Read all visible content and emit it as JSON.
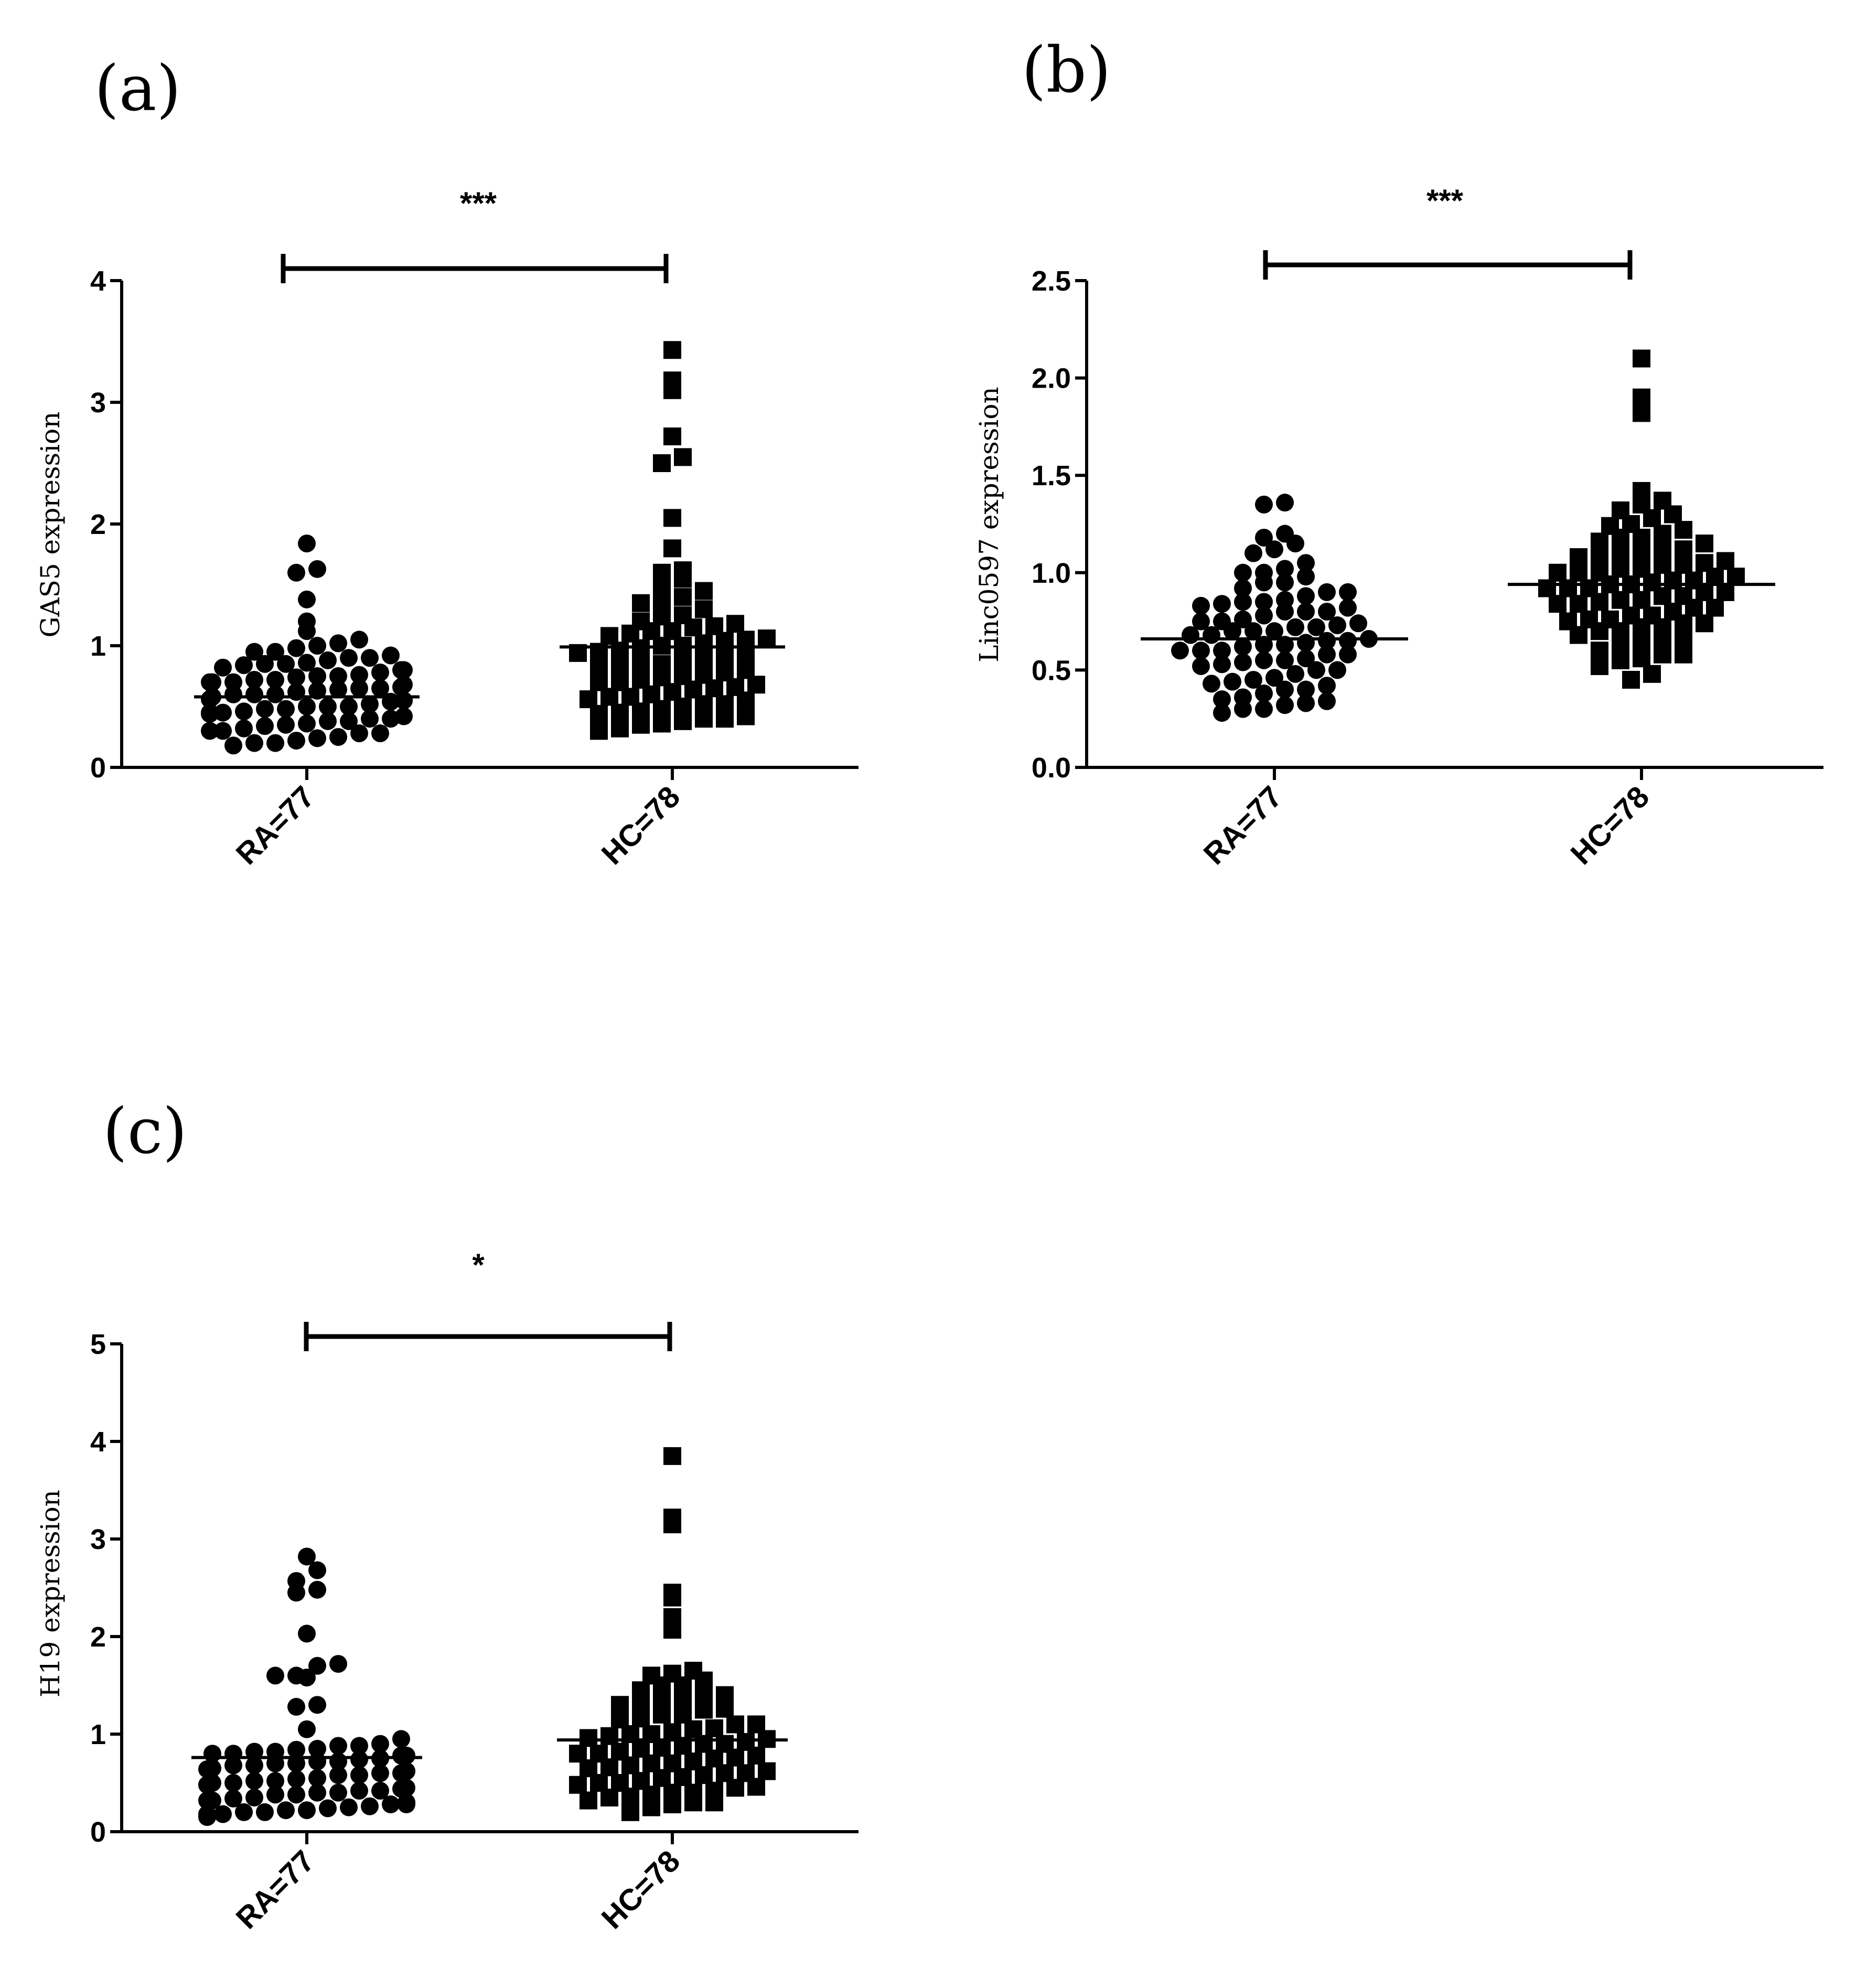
{
  "chart_data": [
    {
      "type": "scatter",
      "panel": "(a)",
      "ylabel": "GAS5 expression",
      "ylim": [
        0,
        4
      ],
      "yticks": [
        "0",
        "1",
        "2",
        "3",
        "4"
      ],
      "categories": [
        "RA=77",
        "HC=78"
      ],
      "significance": "***",
      "series": [
        {
          "name": "RA=77",
          "marker": "circle",
          "mean": 0.58,
          "values": [
            0.18,
            0.2,
            0.22,
            0.25,
            0.28,
            0.3,
            0.32,
            0.34,
            0.36,
            0.38,
            0.4,
            0.42,
            0.44,
            0.45,
            0.46,
            0.48,
            0.5,
            0.5,
            0.52,
            0.54,
            0.55,
            0.56,
            0.58,
            0.6,
            0.6,
            0.62,
            0.63,
            0.64,
            0.65,
            0.66,
            0.68,
            0.7,
            0.7,
            0.72,
            0.72,
            0.74,
            0.75,
            0.76,
            0.78,
            0.8,
            0.8,
            0.82,
            0.84,
            0.85,
            0.86,
            0.88,
            0.9,
            0.92,
            0.95,
            0.98,
            1.0,
            1.02,
            0.2,
            0.24,
            0.3,
            0.35,
            0.4,
            0.45,
            0.5,
            0.55,
            0.6,
            0.65,
            0.7,
            0.75,
            0.85,
            0.9,
            0.95,
            1.05,
            1.12,
            1.2,
            1.38,
            1.6,
            1.63,
            1.84,
            0.28,
            0.38,
            0.48
          ]
        },
        {
          "name": "HC=78",
          "marker": "square",
          "mean": 0.99,
          "values": [
            0.3,
            0.35,
            0.38,
            0.4,
            0.42,
            0.45,
            0.48,
            0.5,
            0.52,
            0.55,
            0.58,
            0.6,
            0.62,
            0.65,
            0.68,
            0.7,
            0.72,
            0.75,
            0.78,
            0.8,
            0.82,
            0.85,
            0.88,
            0.9,
            0.92,
            0.95,
            0.98,
            1.0,
            1.02,
            1.05,
            1.08,
            1.1,
            1.12,
            1.15,
            1.2,
            1.25,
            1.3,
            1.35,
            1.4,
            1.45,
            1.5,
            1.55,
            1.6,
            1.62,
            1.8,
            2.05,
            2.5,
            2.55,
            2.72,
            3.1,
            3.18,
            3.43,
            0.32,
            0.4,
            0.46,
            0.52,
            0.58,
            0.64,
            0.7,
            0.76,
            0.82,
            0.88,
            0.94,
            1.0,
            1.06,
            1.12,
            1.18,
            1.24,
            0.36,
            0.44,
            0.56,
            0.66,
            0.74,
            0.84,
            0.96,
            1.04,
            1.16,
            1.36
          ]
        }
      ]
    },
    {
      "type": "scatter",
      "panel": "(b)",
      "ylabel": "Linc0597 expression",
      "ylim": [
        0,
        2.5
      ],
      "yticks": [
        "0.0",
        "0.5",
        "1.0",
        "1.5",
        "2.0",
        "2.5"
      ],
      "categories": [
        "RA=77",
        "HC=78"
      ],
      "significance": "***",
      "series": [
        {
          "name": "RA=77",
          "marker": "circle",
          "mean": 0.66,
          "values": [
            0.28,
            0.3,
            0.32,
            0.34,
            0.36,
            0.38,
            0.4,
            0.42,
            0.44,
            0.46,
            0.48,
            0.5,
            0.52,
            0.54,
            0.55,
            0.56,
            0.58,
            0.6,
            0.6,
            0.62,
            0.63,
            0.64,
            0.65,
            0.66,
            0.68,
            0.7,
            0.7,
            0.72,
            0.72,
            0.74,
            0.75,
            0.76,
            0.78,
            0.8,
            0.8,
            0.82,
            0.84,
            0.85,
            0.86,
            0.88,
            0.9,
            0.92,
            0.95,
            0.98,
            1.0,
            1.02,
            1.05,
            1.1,
            1.15,
            1.18,
            1.2,
            1.35,
            1.36,
            0.3,
            0.35,
            0.4,
            0.45,
            0.5,
            0.55,
            0.6,
            0.65,
            0.7,
            0.75,
            0.8,
            0.85,
            0.9,
            0.95,
            1.0,
            1.12,
            0.33,
            0.43,
            0.53,
            0.63,
            0.73,
            0.83,
            0.58,
            0.68
          ]
        },
        {
          "name": "HC=78",
          "marker": "square",
          "mean": 0.94,
          "values": [
            0.45,
            0.48,
            0.52,
            0.55,
            0.58,
            0.6,
            0.62,
            0.65,
            0.68,
            0.7,
            0.72,
            0.74,
            0.75,
            0.76,
            0.78,
            0.8,
            0.82,
            0.84,
            0.85,
            0.86,
            0.88,
            0.9,
            0.9,
            0.92,
            0.94,
            0.95,
            0.96,
            0.98,
            1.0,
            1.0,
            1.02,
            1.04,
            1.05,
            1.06,
            1.08,
            1.1,
            1.12,
            1.15,
            1.18,
            1.2,
            1.22,
            1.25,
            1.28,
            1.3,
            1.32,
            1.35,
            1.37,
            1.42,
            1.82,
            1.9,
            2.1,
            0.56,
            0.64,
            0.7,
            0.78,
            0.82,
            0.88,
            0.92,
            0.96,
            1.0,
            1.04,
            1.1,
            1.16,
            1.24,
            0.66,
            0.74,
            0.86,
            0.94,
            1.02,
            1.12,
            0.58,
            0.76,
            0.84,
            0.98,
            1.08,
            1.18,
            0.72,
            0.92
          ]
        }
      ]
    },
    {
      "type": "scatter",
      "panel": "(c)",
      "ylabel": "H19 expression",
      "ylim": [
        0,
        5
      ],
      "yticks": [
        "0",
        "1",
        "2",
        "3",
        "4",
        "5"
      ],
      "categories": [
        "RA=77",
        "HC=78"
      ],
      "significance": "*",
      "series": [
        {
          "name": "RA=77",
          "marker": "circle",
          "mean": 0.76,
          "values": [
            0.15,
            0.18,
            0.2,
            0.22,
            0.25,
            0.28,
            0.3,
            0.32,
            0.35,
            0.38,
            0.4,
            0.42,
            0.45,
            0.48,
            0.5,
            0.52,
            0.55,
            0.58,
            0.6,
            0.62,
            0.65,
            0.68,
            0.7,
            0.72,
            0.75,
            0.78,
            0.8,
            0.82,
            0.85,
            0.88,
            0.9,
            0.95,
            1.05,
            0.16,
            0.2,
            0.24,
            0.3,
            0.34,
            0.4,
            0.44,
            0.5,
            0.54,
            0.6,
            0.64,
            0.7,
            0.74,
            0.8,
            0.84,
            0.22,
            0.32,
            0.42,
            0.52,
            0.62,
            0.72,
            0.82,
            0.18,
            0.28,
            0.38,
            0.48,
            0.58,
            0.68,
            0.78,
            0.88,
            1.28,
            1.3,
            1.6,
            1.6,
            1.7,
            1.72,
            1.58,
            2.03,
            2.45,
            2.48,
            2.57,
            2.68,
            2.82,
            0.26
          ]
        },
        {
          "name": "HC=78",
          "marker": "square",
          "mean": 0.94,
          "values": [
            0.2,
            0.25,
            0.28,
            0.3,
            0.32,
            0.35,
            0.38,
            0.4,
            0.42,
            0.45,
            0.48,
            0.5,
            0.52,
            0.55,
            0.58,
            0.6,
            0.62,
            0.65,
            0.68,
            0.7,
            0.72,
            0.75,
            0.78,
            0.8,
            0.82,
            0.85,
            0.88,
            0.9,
            0.92,
            0.95,
            0.98,
            1.0,
            1.02,
            1.05,
            1.1,
            1.15,
            1.2,
            1.25,
            1.3,
            1.35,
            1.4,
            1.45,
            1.5,
            1.55,
            1.6,
            1.62,
            1.65,
            2.07,
            2.2,
            2.4,
            2.45,
            3.15,
            3.22,
            3.85,
            0.3,
            0.4,
            0.5,
            0.6,
            0.7,
            0.8,
            0.9,
            1.0,
            1.1,
            1.2,
            1.3,
            1.4,
            1.5,
            0.36,
            0.56,
            0.76,
            0.96,
            1.16,
            1.36,
            0.46,
            0.66,
            0.86,
            1.06,
            1.26
          ]
        }
      ]
    }
  ]
}
